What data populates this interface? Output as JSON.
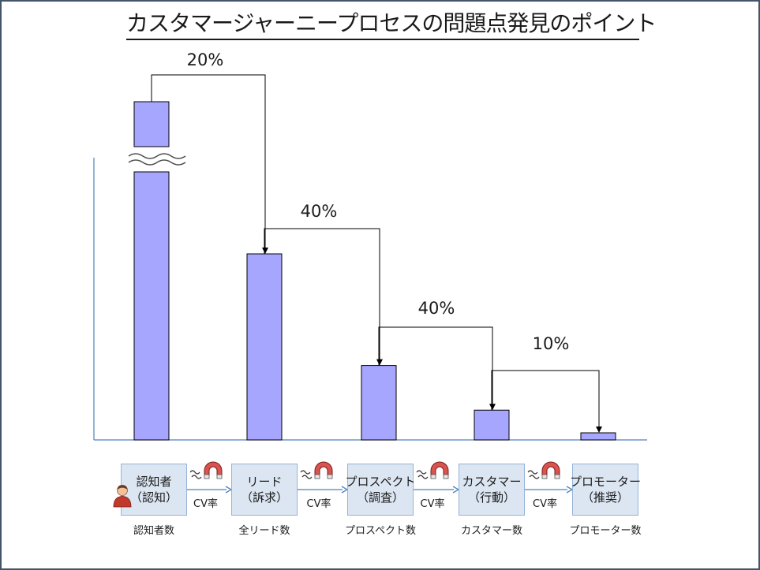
{
  "title": "カスタマージャーニープロセスの問題点発見のポイント",
  "colors": {
    "bar_fill": "#a6a6ff",
    "bar_stroke": "#000000",
    "axis": "#4f81bd",
    "stage_fill": "#dce6f2",
    "stage_border": "#95b3d7"
  },
  "chart_data": {
    "type": "bar",
    "categories": [
      "認知者数",
      "全リード数",
      "プロスペクト数",
      "カスタマー数",
      "プロモーター数"
    ],
    "values": [
      500,
      100,
      40,
      16,
      1.6
    ],
    "axis_break": true,
    "conversion_labels": [
      "20%",
      "40%",
      "40%",
      "10%"
    ],
    "grid": false,
    "legend": "none"
  },
  "stages": [
    {
      "label": "認知者\n（認知）",
      "caption": "認知者数"
    },
    {
      "label": "リード\n（訴求）",
      "caption": "全リード数"
    },
    {
      "label": "プロスペクト\n（調査）",
      "caption": "プロスペクト数"
    },
    {
      "label": "カスタマー\n（行動）",
      "caption": "カスタマー数"
    },
    {
      "label": "プロモーター\n（推奨）",
      "caption": "プロモーター数"
    }
  ],
  "cv_labels": [
    "CV率",
    "CV率",
    "CV率",
    "CV率"
  ],
  "icons": {
    "person": "person-icon",
    "magnet": "magnet-icon"
  }
}
